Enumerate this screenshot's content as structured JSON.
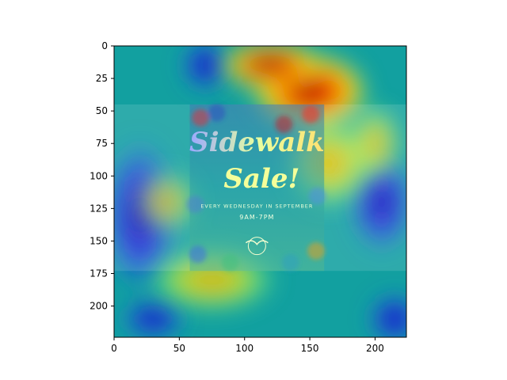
{
  "chart_data": {
    "type": "heatmap",
    "description_kind": "attention heatmap (jet colormap) overlaid on an image",
    "xlim": [
      0,
      224
    ],
    "ylim": [
      224,
      0
    ],
    "x_ticks": [
      0,
      50,
      100,
      150,
      200
    ],
    "y_ticks": [
      0,
      25,
      50,
      75,
      100,
      125,
      150,
      175,
      200
    ],
    "colormap": "jet",
    "grid": false,
    "image_band": {
      "y0": 45,
      "y1": 173
    },
    "poster": {
      "x0": 58,
      "x1": 161,
      "y0": 45,
      "y1": 173,
      "title_line1": "Sidewalk",
      "title_line2": "Sale!",
      "subtitle": "EVERY WEDNESDAY IN SEPTEMBER",
      "hours": "9AM-7PM"
    },
    "heat_blobs": [
      {
        "cx": 150,
        "cy": 35,
        "rx": 45,
        "ry": 30,
        "level": 1.0
      },
      {
        "cx": 165,
        "cy": 90,
        "rx": 35,
        "ry": 35,
        "level": 0.75
      },
      {
        "cx": 120,
        "cy": 15,
        "rx": 40,
        "ry": 20,
        "level": 0.8
      },
      {
        "cx": 75,
        "cy": 180,
        "rx": 50,
        "ry": 25,
        "level": 0.65
      },
      {
        "cx": 200,
        "cy": 75,
        "rx": 20,
        "ry": 30,
        "level": 0.6
      },
      {
        "cx": 40,
        "cy": 120,
        "rx": 25,
        "ry": 25,
        "level": 0.4
      }
    ],
    "cold_blobs": [
      {
        "cx": 70,
        "cy": 15,
        "rx": 18,
        "ry": 20
      },
      {
        "cx": 20,
        "cy": 130,
        "rx": 30,
        "ry": 60
      },
      {
        "cx": 205,
        "cy": 120,
        "rx": 25,
        "ry": 40
      },
      {
        "cx": 215,
        "cy": 210,
        "rx": 20,
        "ry": 20
      },
      {
        "cx": 30,
        "cy": 210,
        "rx": 25,
        "ry": 15
      }
    ],
    "base_color": "#12a0a0"
  },
  "colors": {
    "frame": "#000000",
    "base": "#12a0a0"
  }
}
